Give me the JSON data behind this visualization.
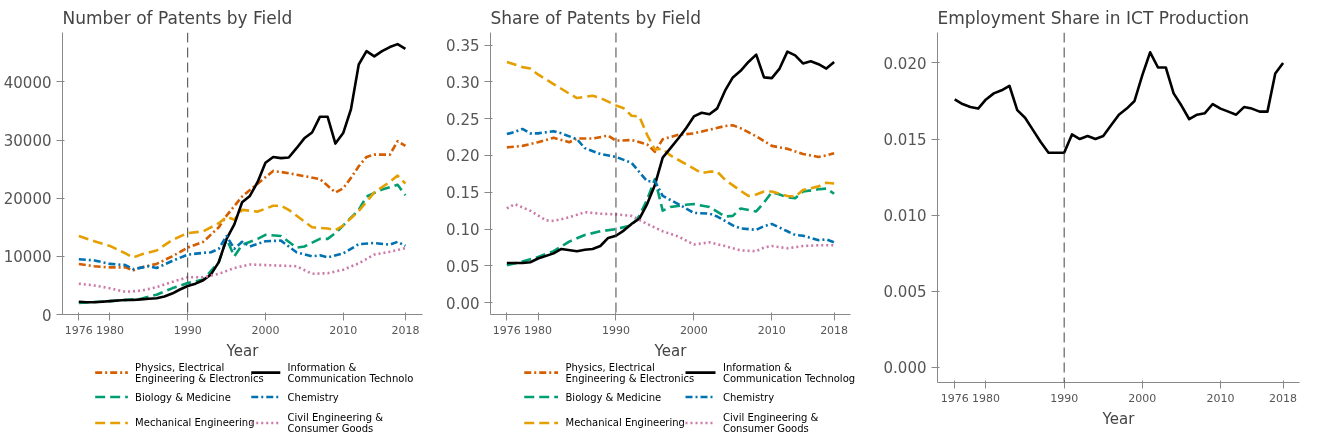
{
  "chart_data": [
    {
      "type": "line",
      "title": "Number of Patents by Field",
      "xlabel": "Year",
      "xlim": [
        1973.9,
        2020.2
      ],
      "xticks": [
        1976,
        1980,
        1990,
        2000,
        2010,
        2018
      ],
      "ylim": [
        0,
        48500
      ],
      "yticks": [
        0,
        10000,
        20000,
        30000,
        40000
      ],
      "legend": "bottom",
      "ref_lines": [
        {
          "axis": "x",
          "value": 1990,
          "color": "#444444",
          "line_style": "dashed"
        }
      ],
      "series": [
        {
          "name": "Physics, Electrical Engineering & Electronics",
          "color": "#d55e00",
          "line_style": "dashdot",
          "x": [
            1976,
            1978,
            1980,
            1982,
            1983,
            1984,
            1986,
            1988,
            1990,
            1992,
            1994,
            1995,
            1997,
            1999,
            2000,
            2001,
            2003,
            2005,
            2007,
            2009,
            2010,
            2011,
            2012,
            2013,
            2014,
            2016,
            2017,
            2018
          ],
          "values": [
            8700,
            8300,
            8100,
            8100,
            7600,
            8100,
            8700,
            10000,
            11500,
            12500,
            15000,
            17000,
            20300,
            22500,
            23600,
            24700,
            24300,
            23800,
            23300,
            21000,
            21700,
            23500,
            25500,
            27100,
            27500,
            27500,
            29800,
            29000
          ]
        },
        {
          "name": "Biology & Medicine",
          "color": "#009e73",
          "line_style": "dashed",
          "x": [
            1976,
            1980,
            1984,
            1986,
            1988,
            1990,
            1992,
            1994,
            1995,
            1996,
            1997,
            1999,
            2000,
            2002,
            2004,
            2005,
            2007,
            2008,
            2009,
            2010,
            2012,
            2013,
            2015,
            2017,
            2018
          ],
          "values": [
            2000,
            2300,
            2700,
            3400,
            4500,
            5400,
            6000,
            9000,
            13000,
            10000,
            12000,
            13000,
            13700,
            13500,
            11500,
            11700,
            13000,
            13000,
            14000,
            15300,
            18000,
            20300,
            21500,
            22300,
            20500
          ]
        },
        {
          "name": "Mechanical Engineering",
          "color": "#e69f00",
          "line_style": "dashed",
          "x": [
            1976,
            1978,
            1980,
            1982,
            1983,
            1984,
            1986,
            1988,
            1990,
            1992,
            1994,
            1995,
            1996,
            1997,
            1999,
            2001,
            2002,
            2003,
            2005,
            2006,
            2008,
            2009,
            2010,
            2012,
            2014,
            2016,
            2017,
            2018
          ],
          "values": [
            13500,
            12600,
            11800,
            10500,
            9800,
            10300,
            11000,
            12800,
            14000,
            14300,
            15700,
            16800,
            16300,
            18000,
            17700,
            18700,
            18700,
            18000,
            16000,
            15000,
            14800,
            14500,
            15300,
            17800,
            21000,
            22800,
            23900,
            22500
          ]
        },
        {
          "name": "Information & Communication Technolo",
          "color": "#000000",
          "line_style": "solid",
          "x": [
            1976,
            1977,
            1978,
            1979,
            1980,
            1981,
            1982,
            1983,
            1984,
            1985,
            1986,
            1987,
            1988,
            1989,
            1990,
            1991,
            1992,
            1993,
            1994,
            1995,
            1996,
            1997,
            1998,
            1999,
            2000,
            2001,
            2002,
            2003,
            2004,
            2005,
            2006,
            2007,
            2008,
            2009,
            2010,
            2011,
            2012,
            2013,
            2014,
            2015,
            2016,
            2017,
            2018
          ],
          "values": [
            2200,
            2100,
            2100,
            2200,
            2300,
            2400,
            2500,
            2500,
            2600,
            2700,
            2800,
            3100,
            3600,
            4300,
            4900,
            5300,
            5900,
            6900,
            9000,
            13000,
            15500,
            19300,
            20400,
            22800,
            26100,
            27100,
            26900,
            27000,
            28600,
            30300,
            31300,
            34000,
            34000,
            29400,
            31200,
            35300,
            43000,
            45300,
            44400,
            45300,
            46000,
            46500,
            45700
          ]
        },
        {
          "name": "Chemistry",
          "color": "#0072b2",
          "line_style": "dashdot",
          "x": [
            1976,
            1978,
            1980,
            1982,
            1983,
            1985,
            1986,
            1988,
            1990,
            1992,
            1993,
            1994,
            1995,
            1996,
            1997,
            1998,
            2000,
            2002,
            2004,
            2006,
            2007,
            2008,
            2010,
            2012,
            2014,
            2016,
            2017,
            2018
          ],
          "values": [
            9500,
            9300,
            8700,
            8500,
            7800,
            8300,
            8000,
            9200,
            10300,
            10600,
            10700,
            11300,
            13500,
            11300,
            12500,
            11700,
            12600,
            12700,
            10700,
            10000,
            10200,
            9800,
            10500,
            12100,
            12300,
            12000,
            12500,
            11800
          ]
        },
        {
          "name": "Civil Engineering & Consumer Goods",
          "color": "#cc79a7",
          "line_style": "dotted",
          "x": [
            1976,
            1978,
            1980,
            1982,
            1984,
            1986,
            1988,
            1990,
            1992,
            1994,
            1996,
            1998,
            2000,
            2002,
            2004,
            2006,
            2008,
            2010,
            2012,
            2014,
            2016,
            2018
          ],
          "values": [
            5300,
            5000,
            4500,
            3900,
            4100,
            4700,
            5600,
            6400,
            6400,
            7000,
            8000,
            8600,
            8500,
            8400,
            8300,
            7000,
            7100,
            7700,
            8800,
            10300,
            10800,
            11400
          ]
        }
      ]
    },
    {
      "type": "line",
      "title": "Share of Patents by Field",
      "xlabel": "Year",
      "xlim": [
        1973.9,
        2020.1
      ],
      "xticks": [
        1976,
        1980,
        1990,
        2000,
        2010,
        2018
      ],
      "ylim": [
        -0.016,
        0.367
      ],
      "yticks": [
        {
          "value": 0,
          "label": "0.00"
        },
        {
          "value": 0.05,
          "label": "0.05"
        },
        {
          "value": 0.1,
          "label": "0.10"
        },
        {
          "value": 0.15,
          "label": "0.15"
        },
        {
          "value": 0.2,
          "label": "0.20"
        },
        {
          "value": 0.25,
          "label": "0.25"
        },
        {
          "value": 0.3,
          "label": "0.30"
        },
        {
          "value": 0.35,
          "label": "0.35"
        }
      ],
      "legend": "bottom",
      "ref_lines": [
        {
          "axis": "x",
          "value": 1990,
          "color": "#444444",
          "line_style": "dashed"
        }
      ],
      "series": [
        {
          "name": "Physics, Electrical Engineering & Electronics",
          "color": "#d55e00",
          "line_style": "dashdot",
          "x": [
            1976,
            1978,
            1980,
            1982,
            1984,
            1985,
            1987,
            1989,
            1990,
            1992,
            1994,
            1995,
            1996,
            1998,
            2000,
            2002,
            2004,
            2005,
            2006,
            2008,
            2010,
            2012,
            2014,
            2016,
            2017,
            2018
          ],
          "values": [
            0.211,
            0.213,
            0.218,
            0.224,
            0.218,
            0.223,
            0.223,
            0.227,
            0.22,
            0.221,
            0.215,
            0.205,
            0.222,
            0.228,
            0.23,
            0.235,
            0.24,
            0.241,
            0.237,
            0.226,
            0.213,
            0.209,
            0.202,
            0.198,
            0.2,
            0.203
          ]
        },
        {
          "name": "Biology & Medicine",
          "color": "#009e73",
          "line_style": "dashed",
          "x": [
            1976,
            1978,
            1980,
            1982,
            1984,
            1986,
            1988,
            1990,
            1992,
            1993,
            1994,
            1995,
            1996,
            1997,
            1999,
            2000,
            2002,
            2004,
            2005,
            2006,
            2008,
            2009,
            2010,
            2011,
            2012,
            2013,
            2014,
            2016,
            2017,
            2018
          ],
          "values": [
            0.051,
            0.056,
            0.062,
            0.07,
            0.083,
            0.092,
            0.097,
            0.1,
            0.105,
            0.118,
            0.14,
            0.168,
            0.125,
            0.13,
            0.133,
            0.134,
            0.13,
            0.117,
            0.118,
            0.128,
            0.124,
            0.136,
            0.15,
            0.147,
            0.143,
            0.142,
            0.151,
            0.154,
            0.155,
            0.148
          ]
        },
        {
          "name": "Mechanical Engineering",
          "color": "#e69f00",
          "line_style": "dashed",
          "x": [
            1976,
            1978,
            1979,
            1980,
            1982,
            1984,
            1985,
            1987,
            1988,
            1990,
            1991,
            1992,
            1993,
            1994,
            1995,
            1996,
            1997,
            1999,
            2000,
            2001,
            2002,
            2003,
            2004,
            2006,
            2007,
            2008,
            2009,
            2010,
            2012,
            2013,
            2014,
            2016,
            2017,
            2018
          ],
          "values": [
            0.327,
            0.32,
            0.318,
            0.31,
            0.297,
            0.284,
            0.278,
            0.281,
            0.278,
            0.268,
            0.264,
            0.254,
            0.253,
            0.228,
            0.208,
            0.209,
            0.2,
            0.188,
            0.182,
            0.176,
            0.178,
            0.178,
            0.167,
            0.152,
            0.145,
            0.147,
            0.151,
            0.151,
            0.145,
            0.144,
            0.153,
            0.158,
            0.163,
            0.162
          ]
        },
        {
          "name": "Information & Communication Technolog",
          "color": "#000000",
          "line_style": "solid",
          "x": [
            1976,
            1978,
            1979,
            1980,
            1982,
            1983,
            1985,
            1986,
            1987,
            1988,
            1989,
            1990,
            1991,
            1992,
            1993,
            1994,
            1995,
            1996,
            1997,
            1998,
            1999,
            2000,
            2001,
            2002,
            2003,
            2004,
            2005,
            2006,
            2007,
            2008,
            2009,
            2010,
            2011,
            2012,
            2013,
            2014,
            2015,
            2016,
            2017,
            2018
          ],
          "values": [
            0.054,
            0.054,
            0.055,
            0.06,
            0.067,
            0.073,
            0.07,
            0.072,
            0.073,
            0.077,
            0.088,
            0.091,
            0.098,
            0.107,
            0.114,
            0.134,
            0.16,
            0.197,
            0.21,
            0.223,
            0.237,
            0.253,
            0.258,
            0.256,
            0.264,
            0.288,
            0.306,
            0.315,
            0.327,
            0.337,
            0.306,
            0.305,
            0.318,
            0.341,
            0.336,
            0.325,
            0.328,
            0.324,
            0.318,
            0.327
          ]
        },
        {
          "name": "Chemistry",
          "color": "#0072b2",
          "line_style": "dashdot",
          "x": [
            1976,
            1977,
            1978,
            1979,
            1980,
            1982,
            1983,
            1985,
            1986,
            1988,
            1990,
            1992,
            1994,
            1995,
            1996,
            1998,
            2000,
            2002,
            2003,
            2005,
            2006,
            2008,
            2009,
            2010,
            2012,
            2013,
            2014,
            2016,
            2017,
            2018
          ],
          "values": [
            0.229,
            0.232,
            0.236,
            0.23,
            0.23,
            0.233,
            0.23,
            0.222,
            0.21,
            0.202,
            0.198,
            0.19,
            0.165,
            0.165,
            0.145,
            0.134,
            0.122,
            0.121,
            0.117,
            0.105,
            0.101,
            0.099,
            0.104,
            0.107,
            0.097,
            0.092,
            0.091,
            0.085,
            0.086,
            0.082
          ]
        },
        {
          "name": "Civil Engineering & Consumer Goods",
          "color": "#cc79a7",
          "line_style": "dotted",
          "x": [
            1976,
            1977,
            1979,
            1981,
            1982,
            1984,
            1986,
            1988,
            1990,
            1992,
            1994,
            1996,
            1998,
            2000,
            2002,
            2004,
            2006,
            2008,
            2009,
            2010,
            2012,
            2014,
            2016,
            2018
          ],
          "values": [
            0.128,
            0.134,
            0.125,
            0.112,
            0.111,
            0.116,
            0.123,
            0.121,
            0.12,
            0.118,
            0.107,
            0.097,
            0.09,
            0.079,
            0.082,
            0.077,
            0.071,
            0.07,
            0.075,
            0.077,
            0.074,
            0.077,
            0.078,
            0.078
          ]
        }
      ]
    },
    {
      "type": "line",
      "title": "Employment Share in ICT Production",
      "xlabel": "Year",
      "xlim": [
        1973.8,
        2020.1
      ],
      "xticks": [
        1976,
        1980,
        1990,
        2000,
        2010,
        2018
      ],
      "ylim": [
        -0.001,
        0.022
      ],
      "yticks": [
        {
          "value": 0,
          "label": "0.000"
        },
        {
          "value": 0.005,
          "label": "0.005"
        },
        {
          "value": 0.01,
          "label": "0.010"
        },
        {
          "value": 0.015,
          "label": "0.015"
        },
        {
          "value": 0.02,
          "label": "0.020"
        }
      ],
      "ref_lines": [
        {
          "axis": "x",
          "value": 1990,
          "color": "#444444",
          "line_style": "dashed"
        }
      ],
      "series": [
        {
          "color": "#000000",
          "line_style": "solid",
          "x": [
            1976,
            1977,
            1978,
            1979,
            1980,
            1981,
            1982,
            1983,
            1984,
            1985,
            1986,
            1987,
            1988,
            1989,
            1990,
            1991,
            1992,
            1993,
            1994,
            1995,
            1996,
            1997,
            1998,
            1999,
            2000,
            2001,
            2002,
            2003,
            2004,
            2005,
            2006,
            2007,
            2008,
            2009,
            2010,
            2011,
            2012,
            2013,
            2014,
            2015,
            2016,
            2017,
            2018
          ],
          "values": [
            0.0176,
            0.0173,
            0.0171,
            0.017,
            0.0176,
            0.018,
            0.0182,
            0.0185,
            0.0169,
            0.0164,
            0.0156,
            0.0148,
            0.0141,
            0.0141,
            0.0141,
            0.0153,
            0.015,
            0.0152,
            0.015,
            0.0152,
            0.0159,
            0.0166,
            0.017,
            0.0175,
            0.0192,
            0.0207,
            0.0197,
            0.0197,
            0.018,
            0.0172,
            0.0163,
            0.0166,
            0.0167,
            0.0173,
            0.017,
            0.0168,
            0.0166,
            0.0171,
            0.017,
            0.0168,
            0.0168,
            0.0193,
            0.02
          ]
        }
      ]
    }
  ]
}
